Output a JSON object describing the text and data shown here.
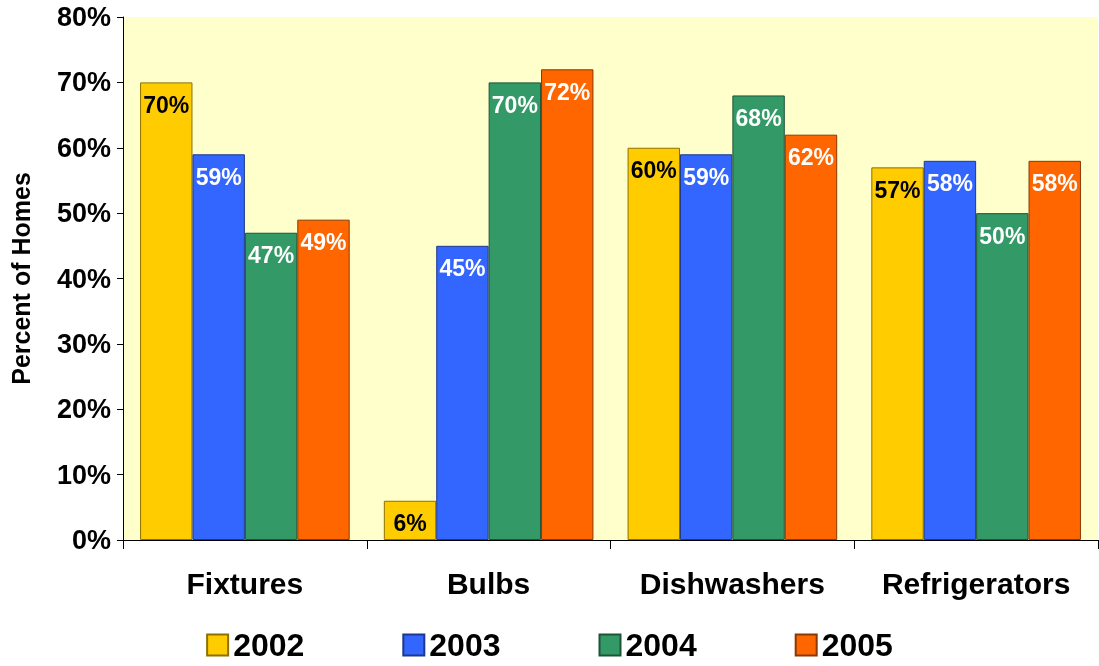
{
  "chart_data": {
    "type": "bar",
    "ylabel": "Percent of Homes",
    "categories": [
      "Fixtures",
      "Bulbs",
      "Dishwashers",
      "Refrigerators"
    ],
    "series": [
      {
        "name": "2002",
        "color": "#ffcc00",
        "values": [
          70,
          6,
          60,
          57
        ],
        "value_labels": [
          "70%",
          "6%",
          "60%",
          "57%"
        ]
      },
      {
        "name": "2003",
        "color": "#3366ff",
        "values": [
          59,
          45,
          59,
          58
        ],
        "value_labels": [
          "59%",
          "45%",
          "59%",
          "58%"
        ]
      },
      {
        "name": "2004",
        "color": "#339966",
        "values": [
          47,
          70,
          68,
          50
        ],
        "value_labels": [
          "47%",
          "70%",
          "68%",
          "50%"
        ]
      },
      {
        "name": "2005",
        "color": "#ff6600",
        "values": [
          49,
          72,
          62,
          58
        ],
        "value_labels": [
          "49%",
          "72%",
          "62%",
          "58%"
        ]
      }
    ],
    "ylim": [
      0,
      80
    ],
    "yticks": [
      {
        "value": 0,
        "label": "0%"
      },
      {
        "value": 10,
        "label": "10%"
      },
      {
        "value": 20,
        "label": "20%"
      },
      {
        "value": 30,
        "label": "30%"
      },
      {
        "value": 40,
        "label": "40%"
      },
      {
        "value": 50,
        "label": "50%"
      },
      {
        "value": 60,
        "label": "60%"
      },
      {
        "value": 70,
        "label": "70%"
      },
      {
        "value": 80,
        "label": "80%"
      }
    ],
    "legend": "bottom"
  }
}
